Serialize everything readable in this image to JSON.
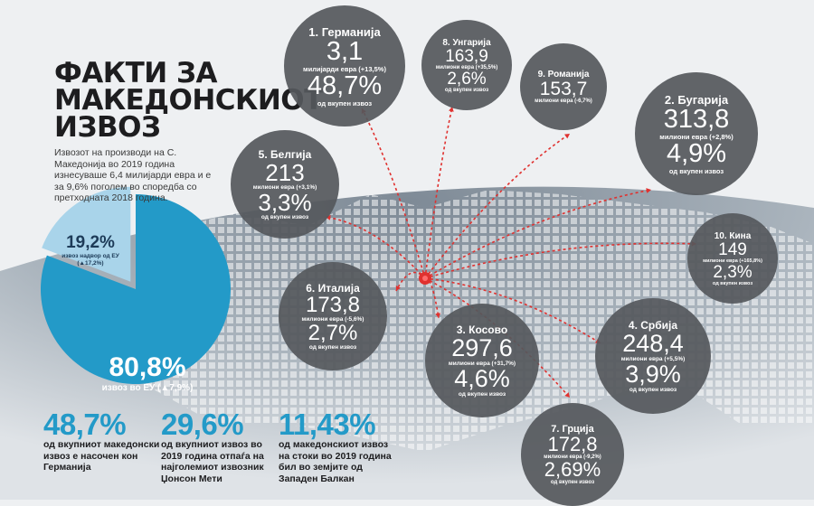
{
  "title_lines": [
    "ФАКТИ ЗА",
    "МАКЕДОНСКИОТ",
    "ИЗВОЗ"
  ],
  "intro_text": "Извозот на производи на С. Македонија во 2019 година изнесуваше 6,4 милијарди евра и е за 9,6% поголем во споредба со претходната 2018 година.",
  "colors": {
    "accent_blue": "#239ac8",
    "dark_circle": "#55585c",
    "arrow_red": "#e0312f",
    "light_blue": "#a9d4ea"
  },
  "countries": [
    {
      "name": "1. Германија",
      "value": "3,1",
      "unit": "милијарди евра (+13,5%)",
      "share": "48,7%",
      "of_total": "од вкупен извоз"
    },
    {
      "name": "8. Унгарија",
      "value": "163,9",
      "unit": "милиони евра (+35,5%)",
      "share": "2,6%",
      "of_total": "од вкупен извоз"
    },
    {
      "name": "9. Романија",
      "value": "153,7",
      "unit": "милиони евра (-6,7%)",
      "share": "",
      "of_total": ""
    },
    {
      "name": "2. Бугарија",
      "value": "313,8",
      "unit": "милиони евра (+2,8%)",
      "share": "4,9%",
      "of_total": "од вкупен извоз"
    },
    {
      "name": "5. Белгија",
      "value": "213",
      "unit": "милиони евра (+3,1%)",
      "share": "3,3%",
      "of_total": "од вкупен извоз"
    },
    {
      "name": "10. Кина",
      "value": "149",
      "unit": "милиони евра (+165,8%)",
      "share": "2,3%",
      "of_total": "од вкупен извоз"
    },
    {
      "name": "6. Италија",
      "value": "173,8",
      "unit": "милиони евра (-5,6%)",
      "share": "2,7%",
      "of_total": "од вкупен извоз"
    },
    {
      "name": "3. Косово",
      "value": "297,6",
      "unit": "милиони евра (+31,7%)",
      "share": "4,6%",
      "of_total": "од вкупен извоз"
    },
    {
      "name": "4. Србија",
      "value": "248,4",
      "unit": "милиони евра (+5,5%)",
      "share": "3,9%",
      "of_total": "од вкупен извоз"
    },
    {
      "name": "7. Грција",
      "value": "172,8",
      "unit": "милиони евра (-9,2%)",
      "share": "2,69%",
      "of_total": "од вкупен извоз"
    }
  ],
  "pie": {
    "eu_share_value": 80.8,
    "eu_value": "80,8%",
    "eu_label": "извоз во ЕУ (▲7,9%)",
    "outside_value": "19,2%",
    "outside_label": "извоз надвор од ЕУ (▲17,2%)"
  },
  "stats": [
    {
      "value": "48,7%",
      "text": "од вкупниот македонски извоз е насочен кон Германија"
    },
    {
      "value": "29,6%",
      "text": "од вкупниот извоз во 2019 година отпаѓа на најголемиот извозник Џонсон Мети"
    },
    {
      "value": "11,43%",
      "text": "од македонскиот извоз на стоки во 2019 година бил во земјите од Западен Балкан"
    }
  ]
}
